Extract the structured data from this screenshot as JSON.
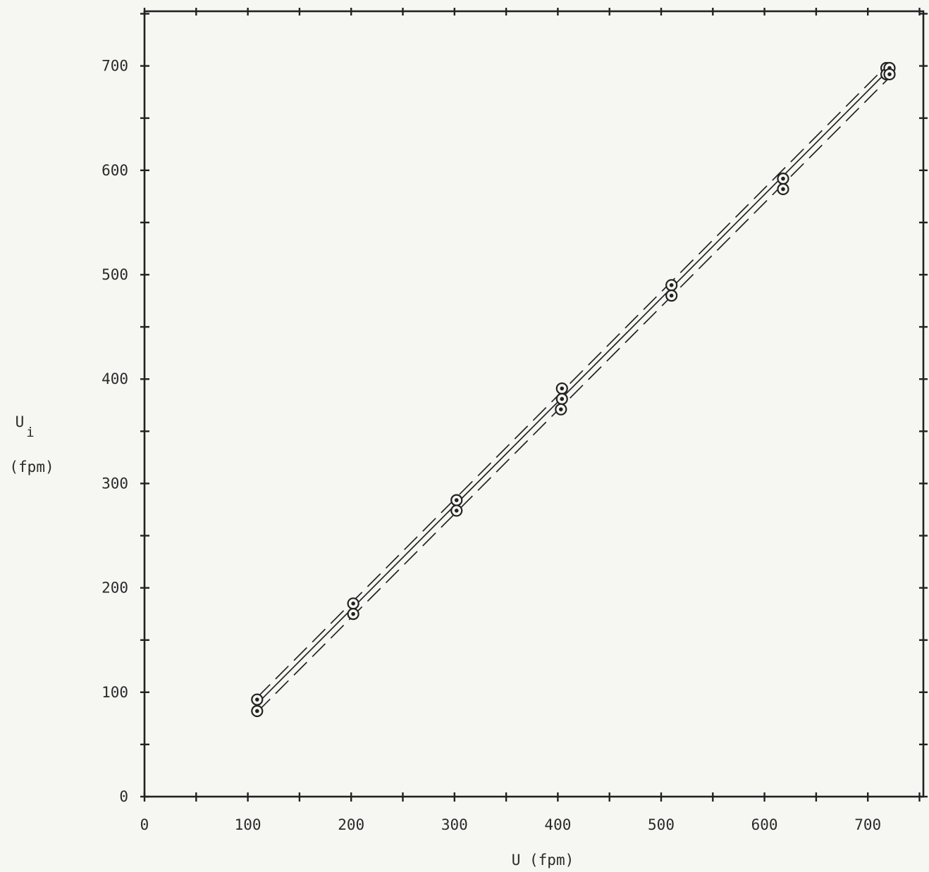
{
  "chart_data": {
    "type": "scatter",
    "title": "",
    "xlabel": "U (fpm)",
    "ylabel_main": "U",
    "ylabel_sub": "i",
    "ylabel_units": "(fpm)",
    "xlim": [
      0,
      750
    ],
    "ylim": [
      0,
      750
    ],
    "x_ticks": [
      0,
      100,
      200,
      300,
      400,
      500,
      600,
      700
    ],
    "y_ticks": [
      0,
      100,
      200,
      300,
      400,
      500,
      600,
      700
    ],
    "grid": false,
    "series": [
      {
        "marker": "circled-dot",
        "points": [
          {
            "x": 109,
            "y": 93
          },
          {
            "x": 109,
            "y": 82
          },
          {
            "x": 202,
            "y": 185
          },
          {
            "x": 202,
            "y": 175
          },
          {
            "x": 302,
            "y": 284
          },
          {
            "x": 302,
            "y": 274
          },
          {
            "x": 404,
            "y": 391
          },
          {
            "x": 404,
            "y": 381
          },
          {
            "x": 403,
            "y": 371
          },
          {
            "x": 510,
            "y": 490
          },
          {
            "x": 510,
            "y": 480
          },
          {
            "x": 618,
            "y": 592
          },
          {
            "x": 618,
            "y": 582
          },
          {
            "x": 718,
            "y": 698
          },
          {
            "x": 718,
            "y": 692
          },
          {
            "x": 721,
            "y": 698
          },
          {
            "x": 721,
            "y": 692
          }
        ]
      }
    ],
    "lines": [
      {
        "style": "solid",
        "from": [
          109,
          89
        ],
        "to": [
          720,
          696
        ]
      },
      {
        "style": "dashed",
        "from": [
          109,
          95
        ],
        "to": [
          720,
          702
        ]
      },
      {
        "style": "dashed",
        "from": [
          109,
          81
        ],
        "to": [
          720,
          688
        ]
      }
    ],
    "colors": {
      "ink": "#222222",
      "background": "#f6f6f3"
    }
  }
}
